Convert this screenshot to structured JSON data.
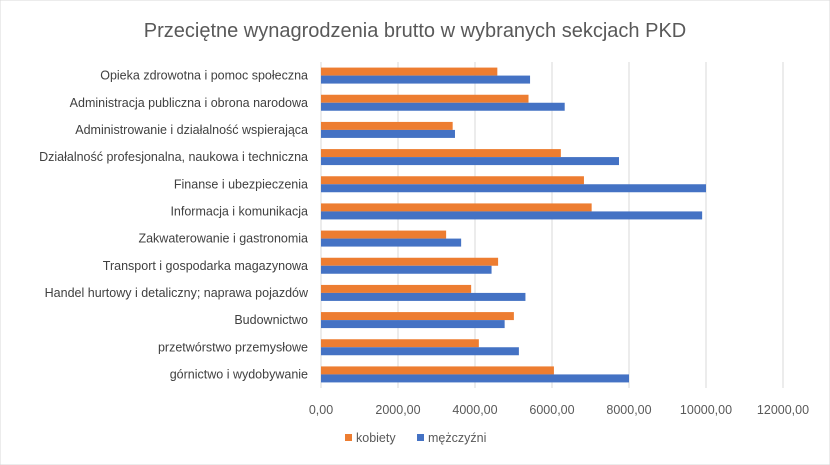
{
  "chart_data": {
    "type": "bar",
    "orientation": "horizontal",
    "title": "Przeciętne wynagrodzenia brutto w wybranych sekcjach PKD",
    "xlabel": "",
    "ylabel": "",
    "xlim": [
      0,
      12000
    ],
    "xticks": [
      0,
      2000,
      4000,
      6000,
      8000,
      10000,
      12000
    ],
    "xtick_labels": [
      "0,00",
      "2000,00",
      "4000,00",
      "6000,00",
      "8000,00",
      "10000,00",
      "12000,00"
    ],
    "grid": true,
    "legend_position": "bottom",
    "categories": [
      "Opieka zdrowotna i pomoc społeczna",
      "Administracja publiczna i obrona narodowa",
      "Administrowanie i działalność wspierająca",
      "Działalność profesjonalna, naukowa i techniczna",
      "Finanse i ubezpieczenia",
      "Informacja i komunikacja",
      "Zakwaterowanie i gastronomia",
      "Transport i gospodarka magazynowa",
      "Handel hurtowy i detaliczny; naprawa pojazdów",
      "Budownictwo",
      "przetwórstwo przemysłowe",
      "górnictwo i wydobywanie"
    ],
    "series": [
      {
        "name": "kobiety",
        "color": "#ED7D31",
        "values": [
          4580,
          5390,
          3420,
          6230,
          6830,
          7030,
          3250,
          4600,
          3900,
          5010,
          4100,
          6050
        ]
      },
      {
        "name": "mężczyźni",
        "color": "#4472C4",
        "values": [
          5430,
          6330,
          3480,
          7740,
          10000,
          9900,
          3640,
          4430,
          5310,
          4770,
          5140,
          8000
        ]
      }
    ]
  }
}
